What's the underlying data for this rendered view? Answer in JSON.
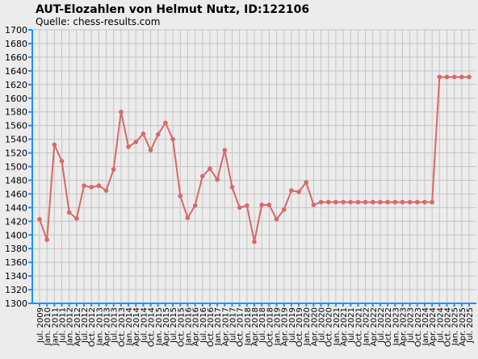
{
  "chart_data": {
    "type": "line",
    "title": "AUT-Elozahlen von Helmut Nutz, ID:122106",
    "subtitle": "Quelle: chess-results.com",
    "categories": [
      "Jul. 2009",
      "Jan. 2010",
      "Jan. 2011",
      "Jul. 2011",
      "Jan. 2012",
      "Apr. 2012",
      "Jul. 2012",
      "Oct. 2012",
      "Jan. 2013",
      "Apr. 2013",
      "Jul. 2013",
      "Oct. 2013",
      "Jan. 2014",
      "Apr. 2014",
      "Jul. 2014",
      "Oct. 2014",
      "Jan. 2015",
      "Apr. 2015",
      "Jul. 2015",
      "Oct. 2015",
      "Jan. 2016",
      "Apr. 2016",
      "Jul. 2016",
      "Oct. 2016",
      "Jan. 2017",
      "Apr. 2017",
      "Jul. 2017",
      "Oct. 2017",
      "Jan. 2018",
      "Apr. 2018",
      "Jul. 2018",
      "Oct. 2018",
      "Jan. 2019",
      "Apr. 2019",
      "Jul. 2019",
      "Oct. 2019",
      "Jan. 2020",
      "Apr. 2020",
      "Jul. 2020",
      "Oct. 2020",
      "Jan. 2021",
      "Apr. 2021",
      "Jul. 2021",
      "Oct. 2021",
      "Jan. 2022",
      "Apr. 2022",
      "Jul. 2022",
      "Oct. 2022",
      "Jan. 2023",
      "Apr. 2023",
      "Jul. 2023",
      "Oct. 2023",
      "Jan. 2024",
      "Apr. 2024",
      "Jul. 2024",
      "Oct. 2024",
      "Jan. 2025",
      "Apr. 2025",
      "Jul. 2025"
    ],
    "values": [
      1423,
      1393,
      1532,
      1508,
      1433,
      1424,
      1472,
      1470,
      1472,
      1465,
      1496,
      1580,
      1529,
      1536,
      1548,
      1524,
      1547,
      1564,
      1540,
      1457,
      1425,
      1443,
      1486,
      1497,
      1481,
      1524,
      1470,
      1440,
      1443,
      1390,
      1444,
      1444,
      1423,
      1437,
      1465,
      1463,
      1477,
      1444,
      1448,
      1448,
      1448,
      1448,
      1448,
      1448,
      1448,
      1448,
      1448,
      1448,
      1448,
      1448,
      1448,
      1448,
      1448,
      1448,
      1631,
      1631,
      1631,
      1631,
      1631
    ],
    "color": "#d9676a",
    "ylim": [
      1300,
      1700
    ],
    "yticks": [
      1300,
      1320,
      1340,
      1360,
      1380,
      1400,
      1420,
      1440,
      1460,
      1480,
      1500,
      1520,
      1540,
      1560,
      1580,
      1600,
      1620,
      1640,
      1660,
      1680,
      1700
    ],
    "grid": true
  }
}
